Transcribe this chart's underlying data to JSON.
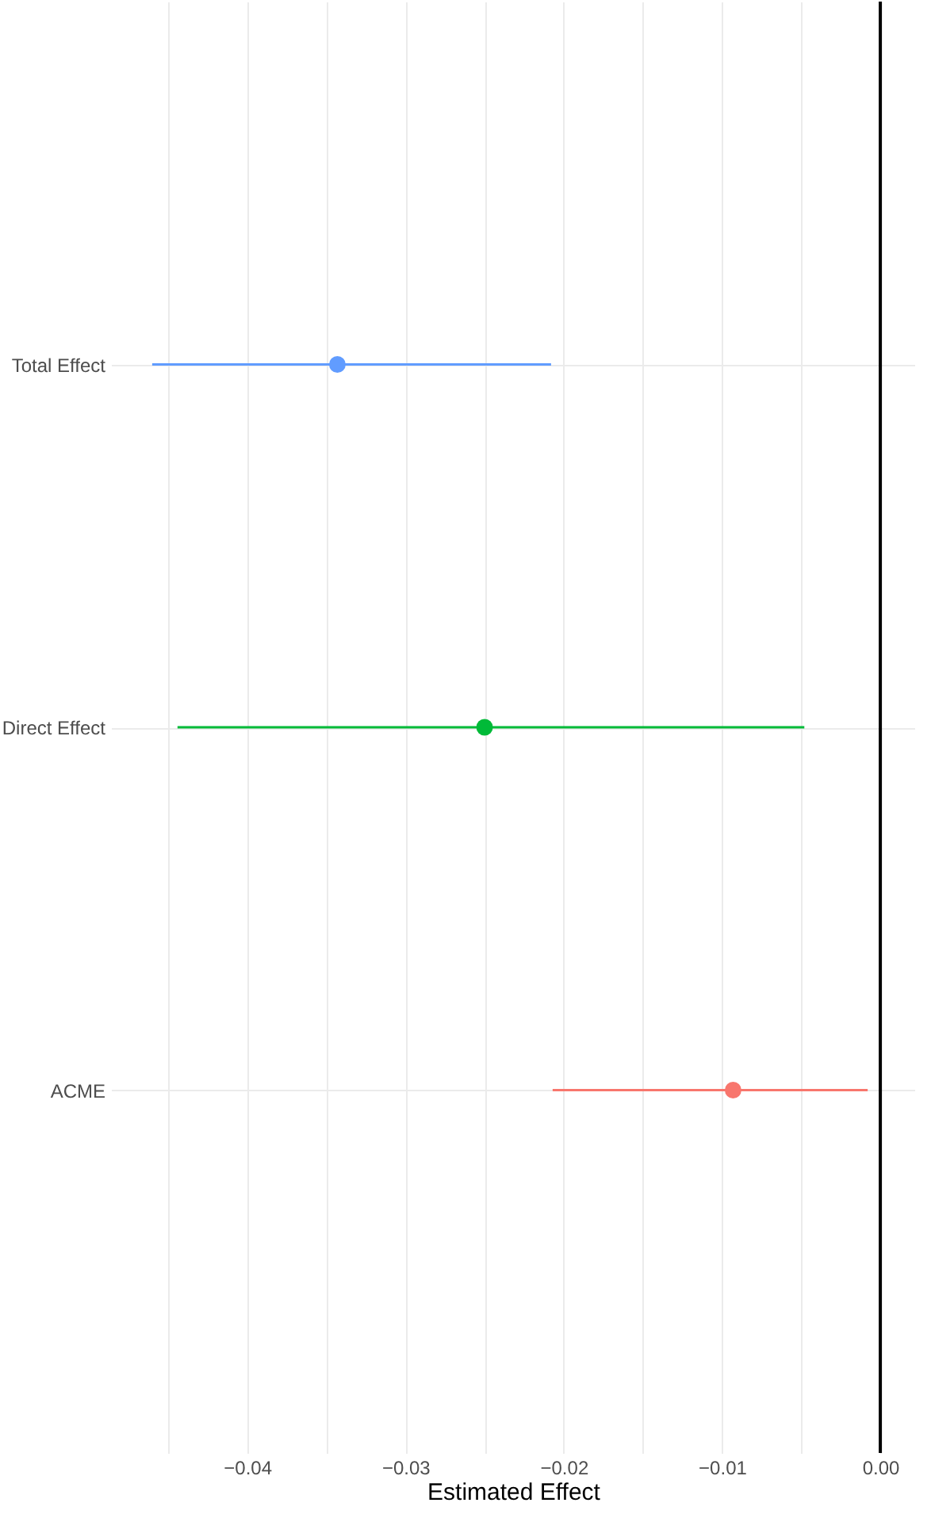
{
  "chart_data": {
    "type": "scatter",
    "orientation": "horizontal",
    "xlabel": "Estimated Effect",
    "categories": [
      "Total Effect",
      "Direct Effect",
      "ACME"
    ],
    "values": [
      -0.0343,
      -0.025,
      -0.0093
    ],
    "errors": [
      [
        -0.046,
        -0.0208
      ],
      [
        -0.0444,
        -0.0048
      ],
      [
        -0.0207,
        -0.0008
      ]
    ],
    "colors": [
      "#619cff",
      "#00ba38",
      "#f8766d"
    ],
    "xlim": [
      -0.0486,
      0.0022
    ],
    "xticks": [
      {
        "value": -0.045,
        "label": null
      },
      {
        "value": -0.04,
        "label": "−0.04"
      },
      {
        "value": -0.035,
        "label": null
      },
      {
        "value": -0.03,
        "label": "−0.03"
      },
      {
        "value": -0.025,
        "label": null
      },
      {
        "value": -0.02,
        "label": "−0.02"
      },
      {
        "value": -0.015,
        "label": null
      },
      {
        "value": -0.01,
        "label": "−0.01"
      },
      {
        "value": -0.005,
        "label": null
      },
      {
        "value": 0,
        "label": "0.00"
      }
    ],
    "ref_lines": [
      {
        "axis": "x",
        "value": 0,
        "color": "#000000"
      }
    ],
    "grid": true,
    "marker": "circle"
  }
}
